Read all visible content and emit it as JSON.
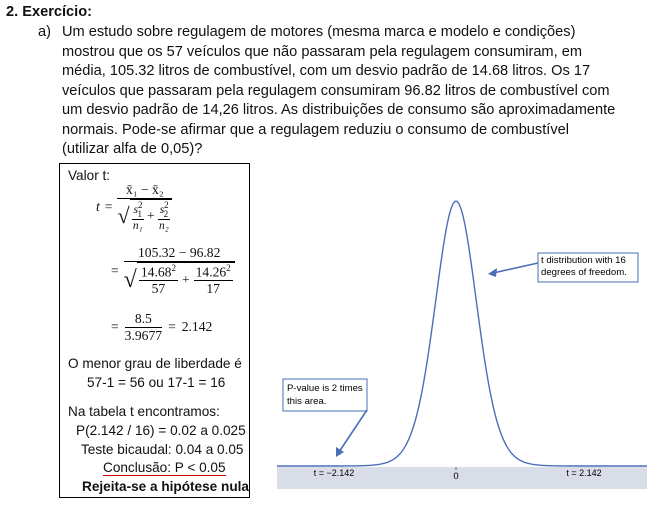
{
  "heading": "2.  Exercício:",
  "item_a": {
    "marker": "a)",
    "lines": [
      "Um estudo sobre regulagem de motores (mesma marca e modelo e condições)",
      "mostrou que os 57 veículos que não passaram pela regulagem consumiram, em",
      "média, 105.32 litros de combustível, com um desvio padrão de 14.68 litros. Os 17",
      "veículos que passaram pela regulagem consumiram 96.82 litros de combustível com",
      "um desvio padrão de 14,26 litros. As distribuições de consumo são aproximadamente",
      "normais. Pode-se afirmar que a regulagem reduziu o consumo de combustível",
      "(utilizar alfa de 0,05)?"
    ]
  },
  "solution_box": {
    "title": "Valor t:",
    "formula": {
      "t_symbol": "t",
      "eq": "=",
      "num": "x̄₁ − x̄₂",
      "s1": "s",
      "s2": "s",
      "sub1": "1",
      "sub2": "2",
      "sq": "2",
      "n1": "n₁",
      "n2": "n₂",
      "plus": "+"
    },
    "step2": {
      "eq": "=",
      "num": "105.32  −  96.82",
      "a_num": "14.68",
      "a_den": "57",
      "b_num": "14.26",
      "b_den": "17",
      "sq": "2",
      "plus": "+"
    },
    "step3": {
      "eq": "=",
      "num": "8.5",
      "den": "3.9677",
      "eq2": "=",
      "result": "2.142"
    },
    "dof_line1": "O menor grau de liberdade é",
    "dof_line2": "57-1 = 56   ou   17-1 = 16",
    "table_line": "Na tabela t encontramos:",
    "p_line": "P(2.142 / 16) = 0.02 a 0.025",
    "bicaudal_line": "Teste bicaudal: 0.04 a 0.05",
    "conclusion_line": "Conclusão: P < 0.05",
    "reject_line": "Rejeita-se a hipótese nula"
  },
  "figure": {
    "dist_callout": [
      "t distribution with 16",
      "degrees of freedom."
    ],
    "p_callout": [
      "P-value is 2 times",
      "this area."
    ],
    "t_neg": "t = −2.142",
    "zero": "0",
    "t_pos": "t = 2.142",
    "curve_color": "#4a6fb5",
    "tail_fill": "#9aa9d6",
    "axis_color": "#d9dde8"
  }
}
